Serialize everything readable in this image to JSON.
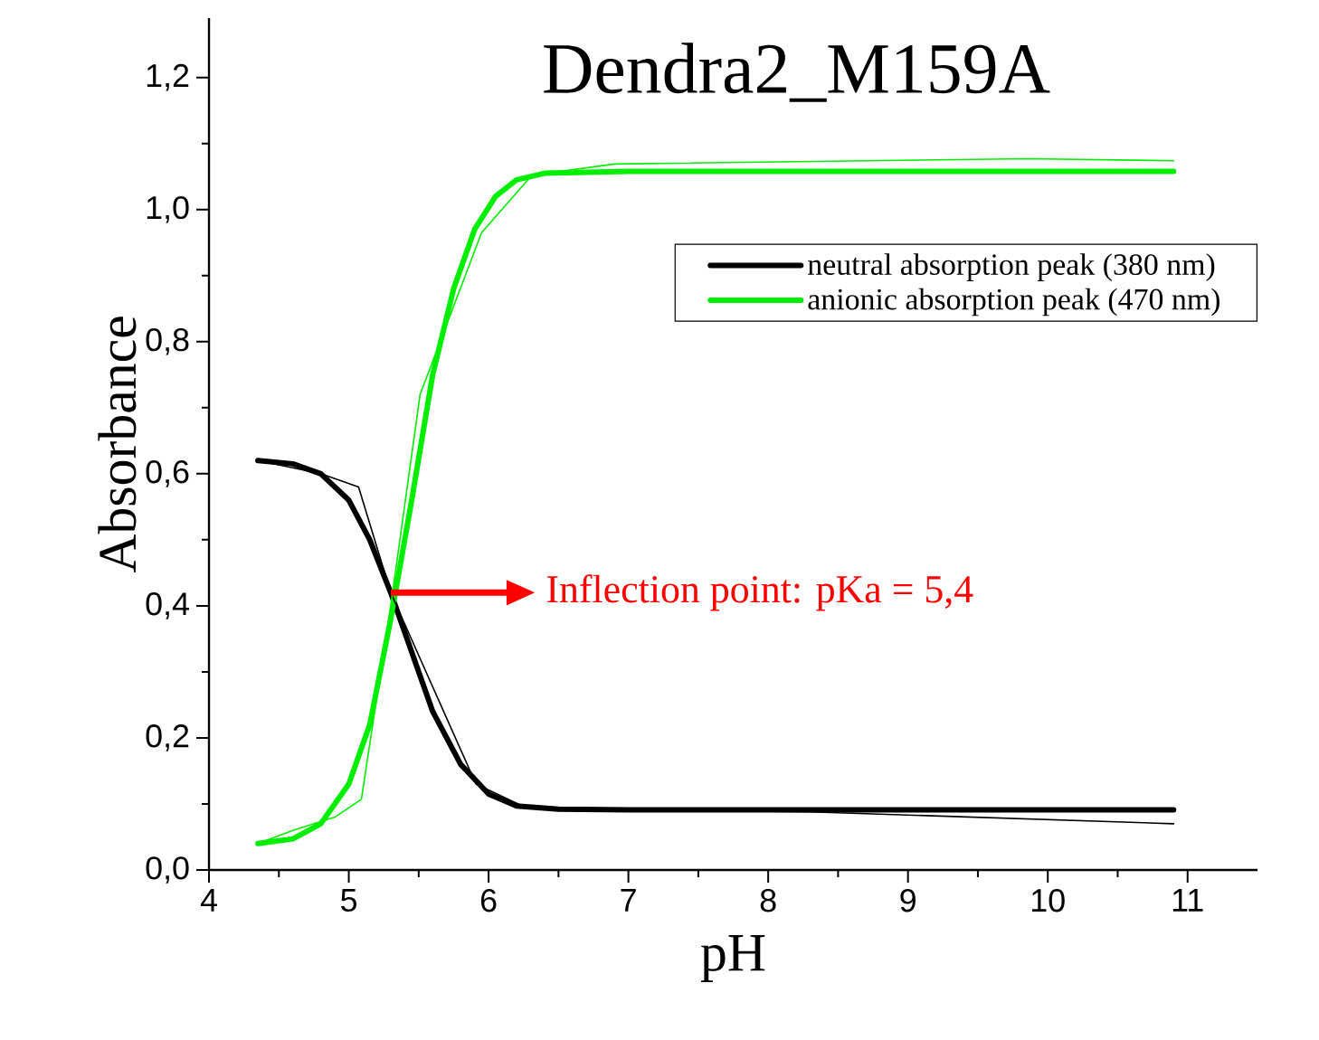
{
  "chart_data": {
    "type": "line",
    "title": "Dendra2_M159A",
    "xlabel": "pH",
    "ylabel": "Absorbance",
    "xlim": [
      4,
      11.5
    ],
    "ylim": [
      0,
      1.29
    ],
    "xticks": [
      4,
      5,
      6,
      7,
      8,
      9,
      10,
      11
    ],
    "yticks": [
      {
        "value": 0,
        "label": "0,0"
      },
      {
        "value": 0.2,
        "label": "0,2"
      },
      {
        "value": 0.4,
        "label": "0,4"
      },
      {
        "value": 0.6,
        "label": "0,6"
      },
      {
        "value": 0.8,
        "label": "0,8"
      },
      {
        "value": 1.0,
        "label": "1,0"
      },
      {
        "value": 1.2,
        "label": "1,2"
      }
    ],
    "legend": "right",
    "annotations": [
      {
        "text": "Inflection point: pKa = 5,4",
        "x": 5.3,
        "y": 0.42
      }
    ],
    "series": [
      {
        "name": "neutral absorption peak (380 nm)",
        "color": "#000000",
        "x": [
          4.35,
          4.6,
          4.8,
          5.0,
          5.15,
          5.3,
          5.45,
          5.6,
          5.8,
          6.0,
          6.2,
          6.5,
          7.0,
          10.9
        ],
        "values": [
          0.62,
          0.615,
          0.6,
          0.56,
          0.5,
          0.42,
          0.33,
          0.24,
          0.16,
          0.115,
          0.097,
          0.092,
          0.091,
          0.091
        ]
      },
      {
        "name": "anionic absorption peak (470 nm)",
        "color": "#00ee00",
        "x": [
          4.35,
          4.6,
          4.8,
          5.0,
          5.15,
          5.3,
          5.45,
          5.6,
          5.75,
          5.9,
          6.05,
          6.2,
          6.4,
          7.0,
          10.9
        ],
        "values": [
          0.04,
          0.047,
          0.07,
          0.13,
          0.22,
          0.38,
          0.56,
          0.75,
          0.88,
          0.97,
          1.02,
          1.045,
          1.055,
          1.058,
          1.058
        ]
      },
      {
        "color": "#000000",
        "x": [
          4.35,
          4.8,
          5.07,
          5.3,
          5.91,
          6.28,
          8.3,
          10.9
        ],
        "values": [
          0.62,
          0.6,
          0.58,
          0.42,
          0.13,
          0.093,
          0.088,
          0.07
        ]
      },
      {
        "color": "#00ee00",
        "x": [
          4.35,
          4.6,
          4.9,
          5.09,
          5.3,
          5.51,
          5.95,
          6.31,
          6.9,
          9.86,
          10.9
        ],
        "values": [
          0.04,
          0.06,
          0.08,
          0.107,
          0.4,
          0.72,
          0.965,
          1.052,
          1.069,
          1.077,
          1.074
        ]
      }
    ]
  }
}
